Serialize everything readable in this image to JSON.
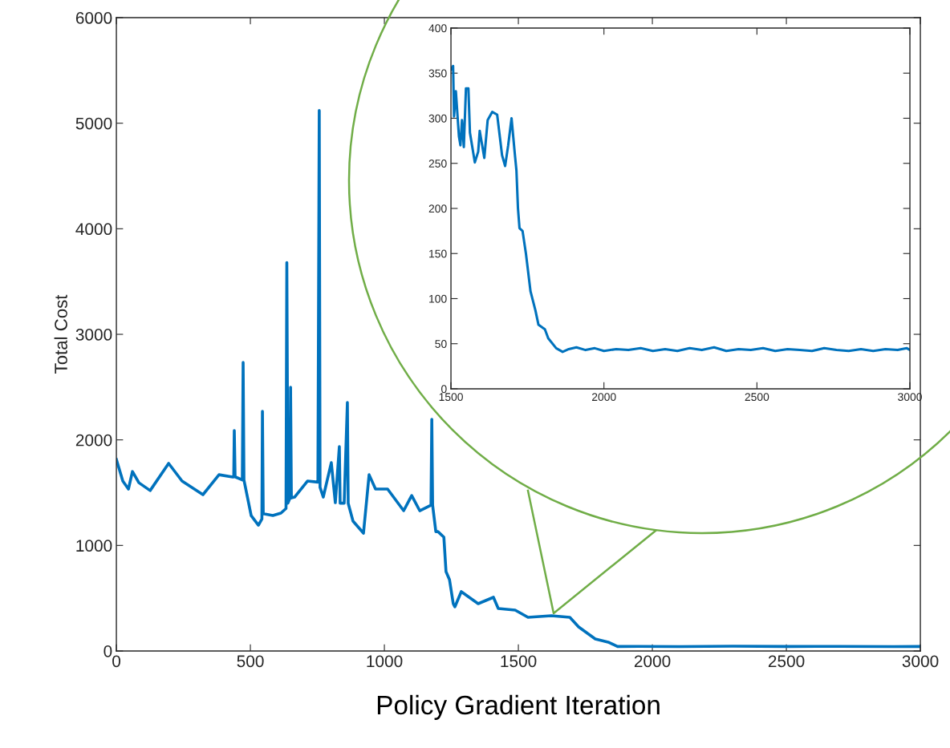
{
  "chart_data": [
    {
      "type": "line",
      "xlabel": "Policy Gradient Iteration",
      "ylabel": "Total Cost",
      "xlim": [
        0,
        3000
      ],
      "ylim": [
        0,
        6000
      ],
      "xticks": [
        0,
        500,
        1000,
        1500,
        2000,
        2500,
        3000
      ],
      "yticks": [
        0,
        1000,
        2000,
        3000,
        4000,
        5000,
        6000
      ],
      "legend": false,
      "series": [
        {
          "color": "#0072bd",
          "x": [
            0,
            24,
            45,
            60,
            84,
            126,
            195,
            245,
            323,
            383,
            434,
            438,
            440,
            443,
            470,
            473,
            476,
            503,
            530,
            543,
            545,
            548,
            584,
            614,
            633,
            636,
            640,
            648,
            650,
            653,
            665,
            713,
            752,
            757,
            760,
            772,
            802,
            817,
            832,
            835,
            850,
            862,
            865,
            883,
            922,
            943,
            967,
            1012,
            1072,
            1102,
            1132,
            1174,
            1177,
            1180,
            1192,
            1200,
            1222,
            1230,
            1243,
            1257,
            1263,
            1287,
            1350,
            1407,
            1425,
            1488,
            1536,
            1623,
            1692,
            1725,
            1787,
            1835,
            1870,
            1950,
            2100,
            2300,
            2500,
            2700,
            2900,
            3000
          ],
          "values": [
            1815,
            1610,
            1534,
            1700,
            1594,
            1520,
            1777,
            1610,
            1481,
            1670,
            1648,
            1648,
            2088,
            1650,
            1620,
            2733,
            1620,
            1283,
            1192,
            1250,
            2270,
            1300,
            1283,
            1306,
            1350,
            3680,
            1400,
            1450,
            2498,
            1450,
            1458,
            1610,
            1600,
            5120,
            1550,
            1458,
            1784,
            1405,
            1936,
            1400,
            1400,
            2354,
            1400,
            1230,
            1116,
            1670,
            1534,
            1534,
            1329,
            1473,
            1329,
            1382,
            2194,
            1382,
            1131,
            1131,
            1078,
            752,
            676,
            448,
            418,
            562,
            448,
            509,
            402,
            387,
            319,
            334,
            319,
            228,
            114,
            84,
            43,
            44,
            42,
            45,
            43,
            44,
            42,
            43
          ]
        }
      ]
    },
    {
      "type": "line",
      "xlim": [
        1500,
        3000
      ],
      "ylim": [
        0,
        400
      ],
      "xticks": [
        1500,
        2000,
        2500,
        3000
      ],
      "yticks": [
        0,
        50,
        100,
        150,
        200,
        250,
        300,
        350,
        400
      ],
      "legend": false,
      "series": [
        {
          "color": "#0072bd",
          "x": [
            1500,
            1507,
            1510,
            1516,
            1526,
            1531,
            1536,
            1542,
            1549,
            1557,
            1562,
            1578,
            1589,
            1594,
            1609,
            1620,
            1635,
            1651,
            1667,
            1677,
            1687,
            1698,
            1708,
            1714,
            1719,
            1724,
            1734,
            1745,
            1760,
            1776,
            1786,
            1807,
            1818,
            1844,
            1865,
            1885,
            1910,
            1940,
            1970,
            2000,
            2040,
            2080,
            2120,
            2160,
            2200,
            2240,
            2280,
            2320,
            2360,
            2400,
            2440,
            2480,
            2520,
            2560,
            2600,
            2640,
            2680,
            2720,
            2760,
            2800,
            2840,
            2880,
            2920,
            2960,
            2990,
            3000
          ],
          "values": [
            354,
            358,
            302,
            330,
            280,
            270,
            298,
            268,
            333,
            333,
            284,
            251,
            263,
            286,
            256,
            298,
            307,
            304,
            259,
            247,
            270,
            300,
            263,
            242,
            200,
            178,
            175,
            150,
            108,
            87,
            71,
            66,
            56,
            45,
            41,
            44,
            46,
            43,
            45,
            42,
            44,
            43,
            45,
            42,
            44,
            42,
            45,
            43,
            46,
            42,
            44,
            43,
            45,
            42,
            44,
            43,
            42,
            45,
            43,
            42,
            44,
            42,
            44,
            43,
            45,
            43
          ]
        }
      ]
    }
  ]
}
